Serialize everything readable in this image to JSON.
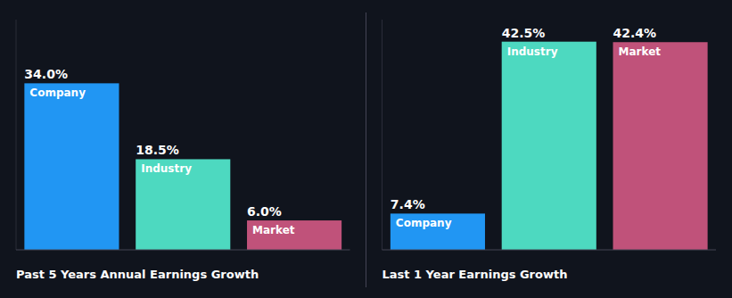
{
  "chart_data": [
    {
      "type": "bar",
      "title": "Past 5 Years Annual Earnings Growth",
      "categories": [
        "Company",
        "Industry",
        "Market"
      ],
      "values": [
        34.0,
        18.5,
        6.0
      ],
      "value_labels": [
        "34.0%",
        "18.5%",
        "6.0%"
      ],
      "colors": [
        "#2196f3",
        "#4dd9c0",
        "#c0527a"
      ],
      "ylim": [
        0,
        47
      ],
      "data_labels": true,
      "tick_labels": false,
      "grid": false
    },
    {
      "type": "bar",
      "title": "Last 1 Year Earnings Growth",
      "categories": [
        "Company",
        "Industry",
        "Market"
      ],
      "values": [
        7.4,
        42.5,
        42.4
      ],
      "value_labels": [
        "7.4%",
        "42.5%",
        "42.4%"
      ],
      "colors": [
        "#2196f3",
        "#4dd9c0",
        "#c0527a"
      ],
      "ylim": [
        0,
        47
      ],
      "data_labels": true,
      "tick_labels": false,
      "grid": false
    }
  ]
}
